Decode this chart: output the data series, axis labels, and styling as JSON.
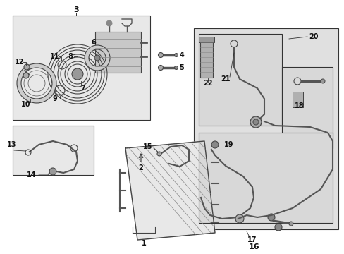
{
  "bg_color": "#ffffff",
  "box_fill": "#e0e0e0",
  "box_fill2": "#d8d8d8",
  "box_edge": "#333333",
  "fig_width": 4.89,
  "fig_height": 3.6,
  "dpi": 100
}
